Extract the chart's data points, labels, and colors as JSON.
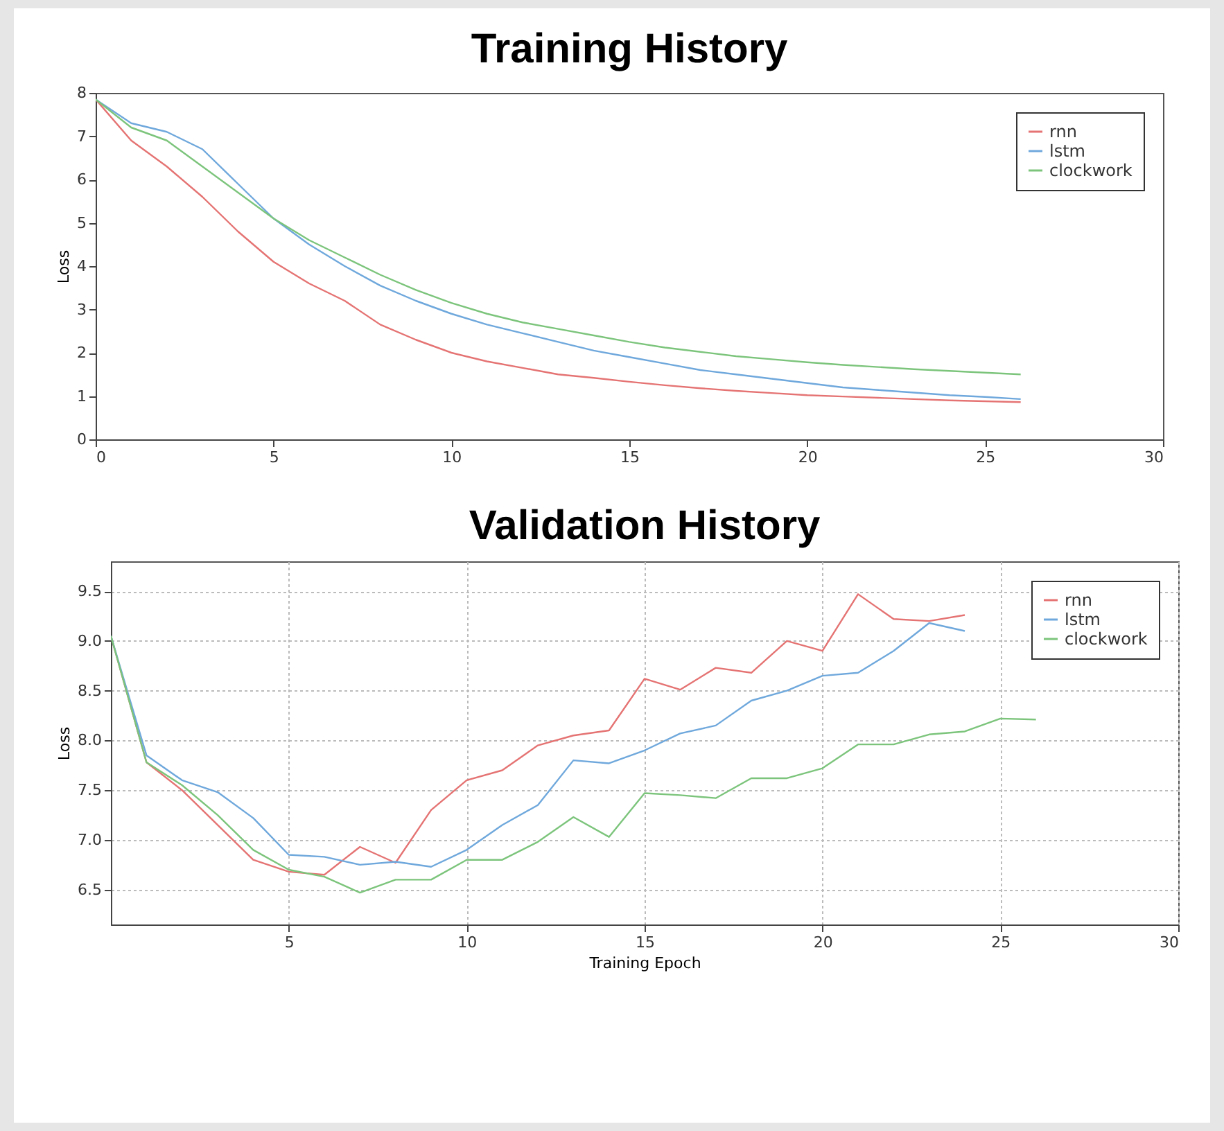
{
  "chart_data": [
    {
      "type": "line",
      "title": "Training History",
      "ylabel": "Loss",
      "x": [
        0,
        1,
        2,
        3,
        4,
        5,
        6,
        7,
        8,
        9,
        10,
        11,
        12,
        13,
        14,
        15,
        16,
        17,
        18,
        19,
        20,
        21,
        22,
        23,
        24,
        25,
        26
      ],
      "xlim": [
        0,
        30
      ],
      "xticks": [
        0,
        5,
        10,
        15,
        20,
        25,
        30
      ],
      "ylim": [
        0,
        8
      ],
      "yticks": [
        0,
        1,
        2,
        3,
        4,
        5,
        6,
        7,
        8
      ],
      "grid": false,
      "legend": "top right",
      "series": [
        {
          "name": "rnn",
          "color": "#e57373",
          "values": [
            7.85,
            6.9,
            6.3,
            5.6,
            4.8,
            4.1,
            3.6,
            3.2,
            2.65,
            2.3,
            2.0,
            1.8,
            1.65,
            1.5,
            1.42,
            1.33,
            1.25,
            1.18,
            1.12,
            1.07,
            1.02,
            0.99,
            0.96,
            0.93,
            0.9,
            0.88,
            0.86
          ]
        },
        {
          "name": "lstm",
          "color": "#6fa8dc",
          "values": [
            7.85,
            7.3,
            7.1,
            6.7,
            5.9,
            5.1,
            4.5,
            4.0,
            3.55,
            3.2,
            2.9,
            2.65,
            2.45,
            2.25,
            2.05,
            1.9,
            1.75,
            1.6,
            1.5,
            1.4,
            1.3,
            1.2,
            1.14,
            1.08,
            1.02,
            0.98,
            0.93
          ]
        },
        {
          "name": "clockwork",
          "color": "#7cc47c",
          "values": [
            7.85,
            7.2,
            6.9,
            6.3,
            5.7,
            5.1,
            4.6,
            4.2,
            3.8,
            3.45,
            3.15,
            2.9,
            2.7,
            2.55,
            2.4,
            2.25,
            2.12,
            2.02,
            1.92,
            1.85,
            1.78,
            1.72,
            1.67,
            1.62,
            1.58,
            1.54,
            1.5
          ]
        }
      ]
    },
    {
      "type": "line",
      "title": "Validation History",
      "xlabel": "Training Epoch",
      "ylabel": "Loss",
      "x": [
        0,
        1,
        2,
        3,
        4,
        5,
        6,
        7,
        8,
        9,
        10,
        11,
        12,
        13,
        14,
        15,
        16,
        17,
        18,
        19,
        20,
        21,
        22,
        23,
        24,
        25,
        26
      ],
      "xlim": [
        0,
        30
      ],
      "xticks": [
        5,
        10,
        15,
        20,
        25,
        30
      ],
      "ylim": [
        6.15,
        9.8
      ],
      "yticks": [
        6.5,
        {
          "value": 7,
          "label": "7.0"
        },
        7.5,
        {
          "value": 8,
          "label": "8.0"
        },
        8.5,
        {
          "value": 9,
          "label": "9.0"
        },
        9.5
      ],
      "grid": true,
      "legend": "top right",
      "series": [
        {
          "name": "rnn",
          "color": "#e57373",
          "values": [
            9.05,
            7.78,
            7.5,
            7.15,
            6.8,
            6.68,
            6.65,
            6.93,
            6.77,
            7.3,
            7.6,
            7.7,
            7.95,
            8.05,
            8.1,
            8.62,
            8.51,
            8.73,
            8.68,
            9.0,
            8.9,
            9.47,
            9.22,
            9.2,
            9.26,
            null,
            null
          ]
        },
        {
          "name": "lstm",
          "color": "#6fa8dc",
          "values": [
            9.05,
            7.85,
            7.6,
            7.48,
            7.22,
            6.85,
            6.83,
            6.75,
            6.78,
            6.73,
            6.9,
            7.15,
            7.35,
            7.8,
            7.77,
            7.9,
            8.07,
            8.15,
            8.4,
            8.5,
            8.65,
            8.68,
            8.9,
            9.18,
            9.1,
            null,
            null
          ]
        },
        {
          "name": "clockwork",
          "color": "#7cc47c",
          "values": [
            9.05,
            7.78,
            7.55,
            7.25,
            6.9,
            6.7,
            6.63,
            6.47,
            6.6,
            6.6,
            6.8,
            6.8,
            6.98,
            7.23,
            7.03,
            7.47,
            7.45,
            7.42,
            7.62,
            7.62,
            7.72,
            7.96,
            7.96,
            8.06,
            8.09,
            8.22,
            8.21
          ]
        }
      ]
    }
  ]
}
